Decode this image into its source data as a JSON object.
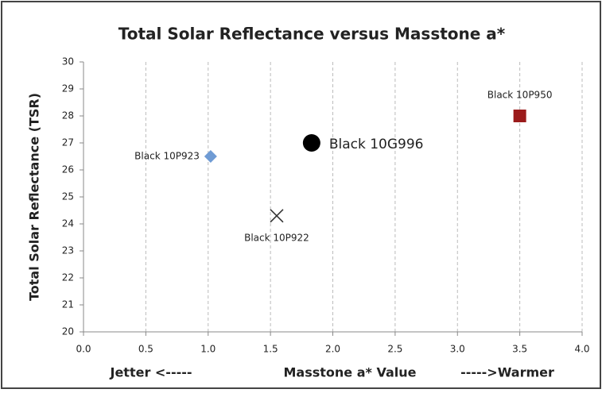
{
  "chart_data": {
    "type": "scatter",
    "title": "Total Solar Reflectance versus Masstone a*",
    "x_label": "Masstone a* Value",
    "x_label_left": "Jetter <-----",
    "x_label_right": "----->Warmer",
    "y_label": "Total Solar Reflectance (TSR)",
    "xlim": [
      0,
      4
    ],
    "ylim": [
      20,
      30
    ],
    "xticks": [
      {
        "value": 0,
        "label": "0.0"
      },
      0.5,
      {
        "value": 1,
        "label": "1.0"
      },
      1.5,
      {
        "value": 2,
        "label": "2.0"
      },
      2.5,
      {
        "value": 3,
        "label": "3.0"
      },
      3.5,
      {
        "value": 4,
        "label": "4.0"
      }
    ],
    "yticks": [
      20,
      21,
      22,
      23,
      24,
      25,
      26,
      27,
      28,
      29,
      30
    ],
    "grid": "x",
    "series": [
      {
        "name": "Black 10P923",
        "color": "#6f9bd4",
        "marker": "diamond",
        "x": [
          1.02
        ],
        "values": [
          26.5
        ]
      },
      {
        "name": "Black 10P922",
        "color": "#333333",
        "marker": "x",
        "x": [
          1.55
        ],
        "values": [
          24.3
        ]
      },
      {
        "name": "Black 10G996",
        "color": "#000000",
        "marker": "circle",
        "x": [
          1.83
        ],
        "values": [
          27.0
        ]
      },
      {
        "name": "Black 10P950",
        "color": "#9b1b1b",
        "marker": "square",
        "x": [
          3.5
        ],
        "values": [
          28.0
        ]
      }
    ]
  }
}
